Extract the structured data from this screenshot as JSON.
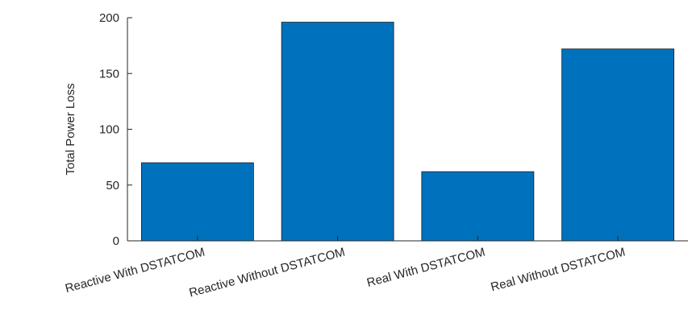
{
  "chart_data": {
    "type": "bar",
    "categories": [
      "Reactive With DSTATCOM",
      "Reactive Without DSTATCOM",
      "Real With DSTATCOM",
      "Real Without DSTATCOM"
    ],
    "values": [
      70,
      196,
      62,
      172
    ],
    "title": "",
    "xlabel": "",
    "ylabel": "Total Power Loss",
    "ylim": [
      0,
      200
    ],
    "yticks": [
      0,
      50,
      100,
      150,
      200
    ],
    "bar_color": "#0072BD",
    "grid": false
  }
}
